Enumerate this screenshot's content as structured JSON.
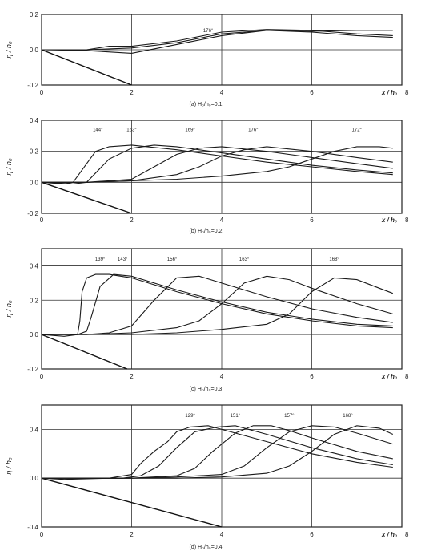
{
  "figure": {
    "id_label": "1"
  },
  "chart_data": [
    {
      "type": "line",
      "caption": "(a) H₀/h₀=0.1",
      "xlabel": "x / h₀",
      "ylabel": "η / h₀",
      "xlim": [
        0,
        8
      ],
      "ylim": [
        -0.2,
        0.2
      ],
      "x_ticks": [
        "0",
        "2",
        "4",
        "6",
        "8"
      ],
      "y_ticks": [
        "-0.2",
        "0.0",
        "0.2"
      ],
      "grid": true,
      "annotations": [
        {
          "text": "176°",
          "x": 3.7,
          "y": 0.1
        }
      ],
      "slope": {
        "x": [
          0,
          2
        ],
        "y": [
          0,
          -0.2
        ]
      },
      "series": [
        {
          "x": [
            0,
            1,
            2,
            3,
            4,
            5,
            6,
            7,
            7.8
          ],
          "y": [
            0,
            -0.005,
            -0.02,
            0.03,
            0.08,
            0.11,
            0.1,
            0.08,
            0.07
          ]
        },
        {
          "x": [
            0,
            1,
            1.5,
            2,
            3,
            4,
            5,
            6,
            7,
            7.8
          ],
          "y": [
            0,
            0.0,
            0.02,
            0.02,
            0.05,
            0.1,
            0.115,
            0.11,
            0.09,
            0.08
          ]
        },
        {
          "x": [
            0,
            1,
            2,
            3,
            4,
            5,
            6,
            7,
            7.8
          ],
          "y": [
            0,
            0.0,
            0.01,
            0.04,
            0.09,
            0.11,
            0.105,
            0.11,
            0.11
          ]
        }
      ]
    },
    {
      "type": "line",
      "caption": "(b) H₀/h₀=0.2",
      "xlabel": "x / h₀",
      "ylabel": "η / h₀",
      "xlim": [
        0,
        8
      ],
      "ylim": [
        -0.2,
        0.4
      ],
      "x_ticks": [
        "0",
        "2",
        "4",
        "6",
        "8"
      ],
      "y_ticks": [
        "-0.2",
        "0.0",
        "0.2",
        "0.4"
      ],
      "grid": true,
      "annotations": [
        {
          "text": "144°",
          "x": 1.25,
          "y": 0.33
        },
        {
          "text": "163°",
          "x": 2.0,
          "y": 0.33
        },
        {
          "text": "169°",
          "x": 3.3,
          "y": 0.33
        },
        {
          "text": "176°",
          "x": 4.7,
          "y": 0.33
        },
        {
          "text": "172°",
          "x": 7.0,
          "y": 0.33
        }
      ],
      "slope": {
        "x": [
          0,
          2
        ],
        "y": [
          0,
          -0.2
        ]
      },
      "series": [
        {
          "x": [
            0,
            0.5,
            0.7,
            1.0,
            1.2,
            1.5,
            2,
            3,
            4,
            5,
            6,
            7,
            7.8
          ],
          "y": [
            0,
            -0.01,
            0.0,
            0.12,
            0.2,
            0.23,
            0.24,
            0.21,
            0.17,
            0.13,
            0.1,
            0.07,
            0.05
          ]
        },
        {
          "x": [
            0,
            0.7,
            1.0,
            1.5,
            2.0,
            2.5,
            3,
            4,
            5,
            6,
            7,
            7.8
          ],
          "y": [
            0,
            -0.01,
            0.0,
            0.15,
            0.22,
            0.24,
            0.23,
            0.19,
            0.15,
            0.11,
            0.08,
            0.06
          ]
        },
        {
          "x": [
            0,
            1,
            2,
            2.5,
            3.0,
            3.5,
            4,
            5,
            6,
            7,
            7.8
          ],
          "y": [
            0,
            0.0,
            0.02,
            0.1,
            0.18,
            0.22,
            0.23,
            0.2,
            0.16,
            0.12,
            0.09
          ]
        },
        {
          "x": [
            0,
            1,
            2,
            3,
            3.5,
            4,
            4.5,
            5,
            6,
            7,
            7.8
          ],
          "y": [
            0,
            0.0,
            0.01,
            0.05,
            0.1,
            0.17,
            0.21,
            0.23,
            0.2,
            0.16,
            0.13
          ]
        },
        {
          "x": [
            0,
            1,
            2,
            3,
            4,
            5,
            5.5,
            6,
            6.5,
            7,
            7.5,
            7.8
          ],
          "y": [
            0,
            0.0,
            0.01,
            0.02,
            0.04,
            0.07,
            0.1,
            0.15,
            0.2,
            0.23,
            0.23,
            0.22
          ]
        }
      ]
    },
    {
      "type": "line",
      "caption": "(c) H₀/h₀=0.3",
      "xlabel": "x / h₀",
      "ylabel": "η / h₀",
      "xlim": [
        0,
        8
      ],
      "ylim": [
        -0.2,
        0.5
      ],
      "x_ticks": [
        "0",
        "2",
        "4",
        "6",
        "8"
      ],
      "y_ticks": [
        "-0.2",
        "0.0",
        "0.2",
        "0.4"
      ],
      "grid": true,
      "annotations": [
        {
          "text": "139°",
          "x": 1.3,
          "y": 0.43
        },
        {
          "text": "143°",
          "x": 1.8,
          "y": 0.43
        },
        {
          "text": "156°",
          "x": 2.9,
          "y": 0.43
        },
        {
          "text": "163°",
          "x": 4.5,
          "y": 0.43
        },
        {
          "text": "168°",
          "x": 6.5,
          "y": 0.43
        }
      ],
      "slope": {
        "x": [
          0,
          1.9
        ],
        "y": [
          0,
          -0.2
        ]
      },
      "series": [
        {
          "x": [
            0,
            0.5,
            0.8,
            0.85,
            0.9,
            1.0,
            1.2,
            1.5,
            2,
            3,
            4,
            5,
            6,
            7,
            7.8
          ],
          "y": [
            0,
            -0.01,
            0.0,
            0.08,
            0.25,
            0.33,
            0.35,
            0.35,
            0.33,
            0.25,
            0.18,
            0.12,
            0.08,
            0.05,
            0.04
          ]
        },
        {
          "x": [
            0,
            0.8,
            1.0,
            1.1,
            1.3,
            1.6,
            2,
            3,
            4,
            5,
            6,
            7,
            7.8
          ],
          "y": [
            0,
            0.0,
            0.02,
            0.1,
            0.28,
            0.35,
            0.34,
            0.26,
            0.19,
            0.13,
            0.09,
            0.06,
            0.05
          ]
        },
        {
          "x": [
            0,
            1,
            1.5,
            2.0,
            2.5,
            3.0,
            3.5,
            4,
            5,
            6,
            7,
            7.8
          ],
          "y": [
            0,
            0.0,
            0.01,
            0.05,
            0.2,
            0.33,
            0.34,
            0.3,
            0.22,
            0.15,
            0.1,
            0.07
          ]
        },
        {
          "x": [
            0,
            1,
            2,
            3,
            3.5,
            4.0,
            4.5,
            5.0,
            5.5,
            6,
            7,
            7.8
          ],
          "y": [
            0,
            0.0,
            0.01,
            0.04,
            0.08,
            0.18,
            0.3,
            0.34,
            0.32,
            0.27,
            0.18,
            0.12
          ]
        },
        {
          "x": [
            0,
            1,
            2,
            3,
            4,
            5,
            5.5,
            6.0,
            6.5,
            7.0,
            7.5,
            7.8
          ],
          "y": [
            0,
            0.0,
            0.0,
            0.01,
            0.03,
            0.06,
            0.12,
            0.25,
            0.33,
            0.32,
            0.27,
            0.24
          ]
        }
      ]
    },
    {
      "type": "line",
      "caption": "(d) H₀/h₀=0.4",
      "xlabel": "x / h₀",
      "ylabel": "η / h₀",
      "xlim": [
        0,
        8
      ],
      "ylim": [
        -0.4,
        0.6
      ],
      "x_ticks": [
        "0",
        "2",
        "4",
        "6",
        "8"
      ],
      "y_ticks": [
        "-0.4",
        "0.0",
        "0.4"
      ],
      "grid": true,
      "annotations": [
        {
          "text": "129°",
          "x": 3.3,
          "y": 0.5
        },
        {
          "text": "151°",
          "x": 4.3,
          "y": 0.5
        },
        {
          "text": "157°",
          "x": 5.5,
          "y": 0.5
        },
        {
          "text": "168°",
          "x": 6.8,
          "y": 0.5
        }
      ],
      "slope": {
        "x": [
          0,
          4
        ],
        "y": [
          0,
          -0.4
        ]
      },
      "series": [
        {
          "x": [
            0,
            0.5,
            1.5,
            2.0,
            2.2,
            2.5,
            2.8,
            3.0,
            3.3,
            3.7,
            4,
            5,
            6,
            7,
            7.8
          ],
          "y": [
            0,
            -0.01,
            0.0,
            0.03,
            0.12,
            0.22,
            0.3,
            0.38,
            0.42,
            0.43,
            0.4,
            0.3,
            0.2,
            0.13,
            0.09
          ]
        },
        {
          "x": [
            0,
            1,
            1.8,
            2.2,
            2.6,
            3.0,
            3.4,
            3.9,
            4.3,
            5,
            6,
            7,
            7.8
          ],
          "y": [
            0,
            0.0,
            0.0,
            0.02,
            0.1,
            0.25,
            0.38,
            0.42,
            0.43,
            0.36,
            0.25,
            0.16,
            0.11
          ]
        },
        {
          "x": [
            0,
            1,
            2,
            3.0,
            3.4,
            3.8,
            4.3,
            4.7,
            5.1,
            5.5,
            6,
            7,
            7.8
          ],
          "y": [
            0,
            0.0,
            0.0,
            0.02,
            0.08,
            0.22,
            0.37,
            0.43,
            0.43,
            0.39,
            0.33,
            0.22,
            0.16
          ]
        },
        {
          "x": [
            0,
            1,
            2,
            3,
            4.0,
            4.5,
            5.0,
            5.5,
            6.0,
            6.5,
            7,
            7.8
          ],
          "y": [
            0,
            0.0,
            0.0,
            0.01,
            0.03,
            0.1,
            0.25,
            0.38,
            0.43,
            0.42,
            0.37,
            0.28
          ]
        },
        {
          "x": [
            0,
            1,
            2,
            3,
            4,
            5.0,
            5.5,
            6.0,
            6.5,
            7.0,
            7.5,
            7.8
          ],
          "y": [
            0,
            0.0,
            0.0,
            0.0,
            0.01,
            0.04,
            0.1,
            0.22,
            0.36,
            0.43,
            0.41,
            0.36
          ]
        }
      ]
    }
  ]
}
